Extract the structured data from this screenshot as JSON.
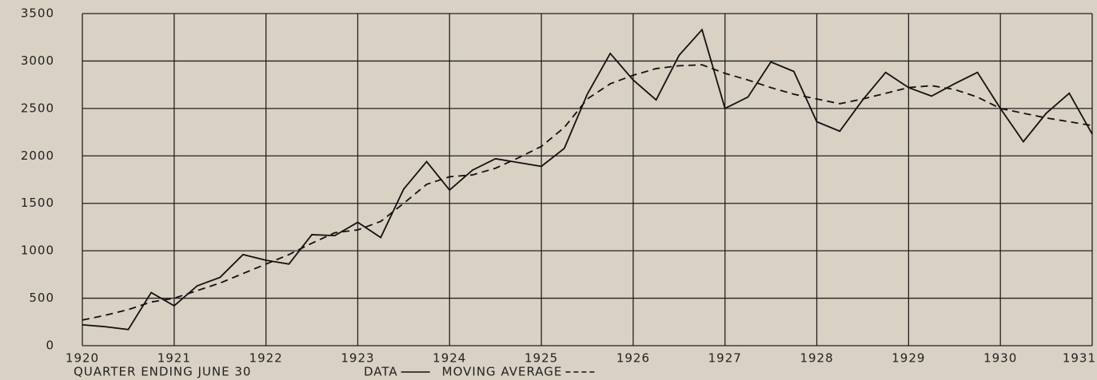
{
  "chart_data": {
    "type": "line",
    "x_label": "QUARTER ENDING JUNE 30",
    "x": [
      1920,
      1920.25,
      1920.5,
      1920.75,
      1921,
      1921.25,
      1921.5,
      1921.75,
      1922,
      1922.25,
      1922.5,
      1922.75,
      1923,
      1923.25,
      1923.5,
      1923.75,
      1924,
      1924.25,
      1924.5,
      1924.75,
      1925,
      1925.25,
      1925.5,
      1925.75,
      1926,
      1926.25,
      1926.5,
      1926.75,
      1927,
      1927.25,
      1927.5,
      1927.75,
      1928,
      1928.25,
      1928.5,
      1928.75,
      1929,
      1929.25,
      1929.5,
      1929.75,
      1930,
      1930.25,
      1930.5,
      1930.75,
      1931
    ],
    "series": [
      {
        "name": "DATA",
        "color": "#111111",
        "dash": false,
        "values": [
          220,
          200,
          170,
          560,
          420,
          630,
          720,
          960,
          900,
          860,
          1170,
          1160,
          1300,
          1140,
          1650,
          1940,
          1640,
          1850,
          1970,
          1930,
          1890,
          2080,
          2650,
          3080,
          2800,
          2590,
          3060,
          3330,
          2500,
          2620,
          2990,
          2890,
          2360,
          2260,
          2590,
          2880,
          2720,
          2630,
          2760,
          2880,
          2500,
          2150,
          2450,
          2660,
          2230
        ]
      },
      {
        "name": "MOVING AVERAGE",
        "color": "#111111",
        "dash": true,
        "values": [
          270,
          320,
          380,
          460,
          500,
          580,
          660,
          760,
          860,
          960,
          1080,
          1190,
          1220,
          1310,
          1500,
          1700,
          1780,
          1800,
          1870,
          1980,
          2100,
          2300,
          2600,
          2760,
          2850,
          2920,
          2950,
          2960,
          2870,
          2800,
          2720,
          2650,
          2600,
          2550,
          2600,
          2660,
          2720,
          2740,
          2700,
          2620,
          2500,
          2450,
          2400,
          2360,
          2320
        ]
      }
    ],
    "xlim": [
      1920,
      1931
    ],
    "xticks": [
      1920,
      1921,
      1922,
      1923,
      1924,
      1925,
      1926,
      1927,
      1928,
      1929,
      1930,
      1931
    ],
    "ylim": [
      0,
      3500
    ],
    "yticks": [
      0,
      500,
      1000,
      1500,
      2000,
      2500,
      3000,
      3500
    ],
    "grid": true
  }
}
